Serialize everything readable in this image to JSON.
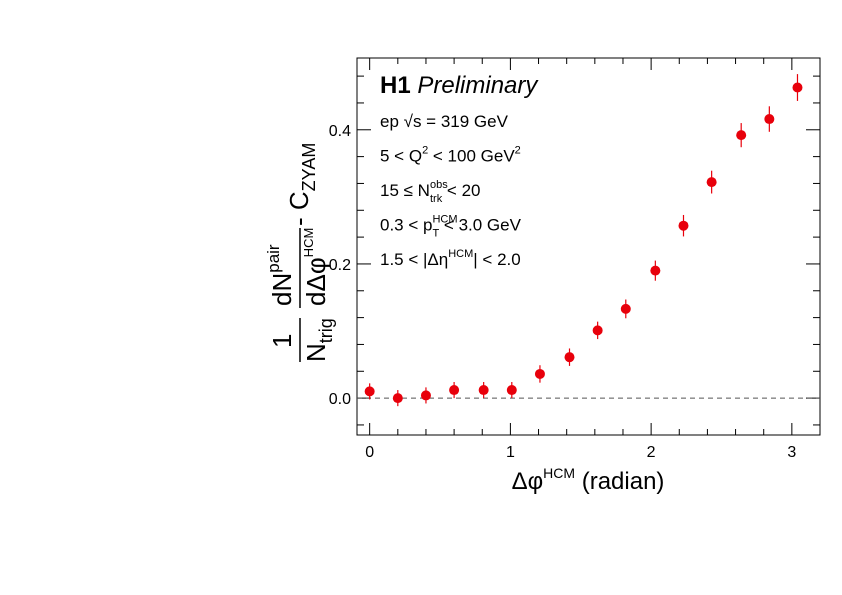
{
  "chart_data": {
    "type": "scatter",
    "brand": "H1",
    "status": "Preliminary",
    "annotations": [
      [
        {
          "text": "ep √s = 319 GeV",
          "shift": "base"
        }
      ],
      [
        {
          "text": "5 < Q",
          "shift": "base"
        },
        {
          "text": "2",
          "shift": "sup"
        },
        {
          "text": " < 100 GeV",
          "shift": "base"
        },
        {
          "text": "2",
          "shift": "sup"
        }
      ],
      [
        {
          "text": "15 ≤ N",
          "shift": "base"
        },
        {
          "text": "obs",
          "shift": "sup"
        },
        {
          "text": "trk",
          "shift": "sub"
        },
        {
          "text": " < 20",
          "shift": "base"
        }
      ],
      [
        {
          "text": "0.3 < p",
          "shift": "base"
        },
        {
          "text": "HCM",
          "shift": "sup"
        },
        {
          "text": "T",
          "shift": "sub"
        },
        {
          "text": " < 3.0 GeV",
          "shift": "base"
        }
      ],
      [
        {
          "text": "1.5 < |Δη",
          "shift": "base"
        },
        {
          "text": "HCM",
          "shift": "sup"
        },
        {
          "text": "| < 2.0",
          "shift": "base"
        }
      ]
    ],
    "xlabel": {
      "main": "Δφ",
      "sup": "HCM",
      "unit": " (radian)"
    },
    "ylabel": {
      "one": "1",
      "ntrig": "N",
      "trig": "trig",
      "dn": "dN",
      "pair": "pair",
      "dphi": "dΔφ",
      "hcm": "HCM",
      "minus": " - C",
      "zyam": "ZYAM"
    },
    "x": [
      0,
      0.2,
      0.4,
      0.6,
      0.81,
      1.01,
      1.21,
      1.42,
      1.62,
      1.82,
      2.03,
      2.23,
      2.43,
      2.64,
      2.84,
      3.04
    ],
    "values": [
      0.01,
      0.0,
      0.004,
      0.012,
      0.012,
      0.012,
      0.036,
      0.061,
      0.101,
      0.133,
      0.19,
      0.257,
      0.322,
      0.392,
      0.416,
      0.463
    ],
    "errors": [
      0.012,
      0.012,
      0.012,
      0.012,
      0.012,
      0.012,
      0.013,
      0.013,
      0.013,
      0.014,
      0.015,
      0.016,
      0.017,
      0.018,
      0.019,
      0.02
    ],
    "color": "#e8000b",
    "hline": 0,
    "xlim": [
      -0.09,
      3.2
    ],
    "ylim": [
      -0.055,
      0.507
    ],
    "xticks": [
      0,
      1,
      2,
      3
    ],
    "yticks": [
      {
        "value": 0,
        "label": "0.0"
      },
      0.2,
      0.4
    ]
  }
}
